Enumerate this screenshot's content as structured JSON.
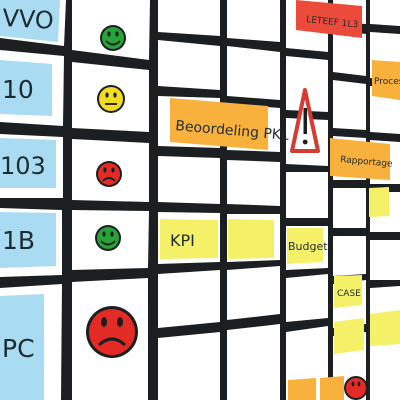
{
  "board": {
    "row_labels": [
      "VVO",
      "10",
      "103",
      "1B",
      "PC"
    ],
    "status_faces": [
      {
        "mood": "happy",
        "color": "#27a337"
      },
      {
        "mood": "neutral",
        "color": "#f1dc21"
      },
      {
        "mood": "sad",
        "color": "#e42a25"
      },
      {
        "mood": "happy",
        "color": "#27a337"
      },
      {
        "mood": "sad",
        "color": "#e42a25"
      }
    ],
    "tags": {
      "beoordeling": "Beoordeling PKL",
      "kpi": "KPI",
      "budget": "Budget",
      "rapportage": "Rapportage",
      "case": "CASE",
      "top": "LETEEF 1L3",
      "proces": "Proces"
    },
    "icons": [
      "warning-icon",
      "sad-face-icon"
    ],
    "colors": {
      "grid": "#1b1f21",
      "cell": "#ffffff",
      "blue_card": "#a9dcf3",
      "orange_card": "#f8b13c",
      "yellow_card": "#f4f068",
      "red_card": "#ec4a3b",
      "warning": "#d63a31"
    }
  }
}
